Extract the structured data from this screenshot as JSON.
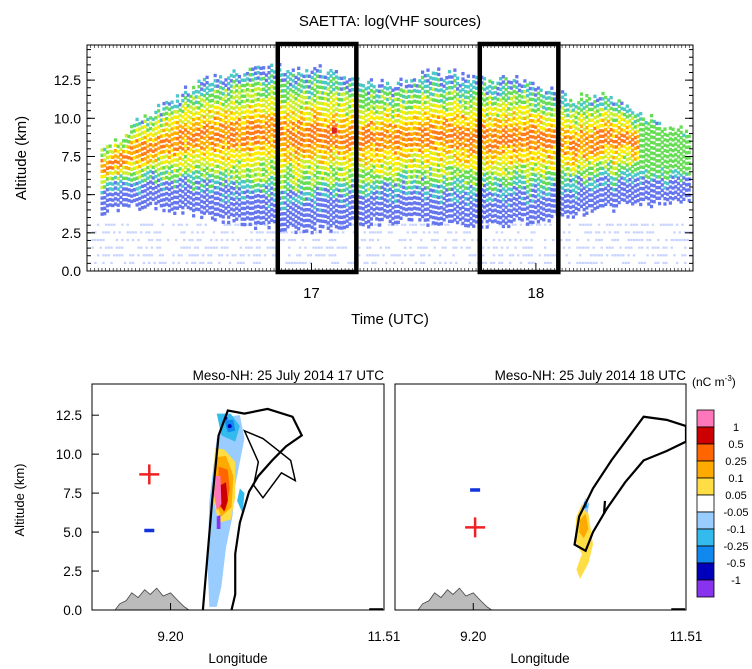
{
  "chart_data": [
    {
      "type": "heatmap",
      "title": "SAETTA: log(VHF sources)",
      "xlabel": "Time (UTC)",
      "ylabel": "Altitude (km)",
      "x_ticks": [
        "17",
        "18"
      ],
      "y_ticks": [
        "0.0",
        "2.5",
        "5.0",
        "7.5",
        "10.0",
        "12.5"
      ],
      "ylim": [
        0,
        14.8
      ],
      "xlim": [
        16.0,
        18.7
      ],
      "highlight_windows": [
        [
          16.85,
          17.2
        ],
        [
          17.75,
          18.1
        ]
      ],
      "colormap": [
        "#c8d4ff",
        "#6677ee",
        "#4cc8c8",
        "#66dd55",
        "#ccee33",
        "#ffee00",
        "#ffb000",
        "#ff7a1a",
        "#dd2222"
      ],
      "envelope": [
        {
          "t": 16.08,
          "top": 7.8,
          "bot": 3.8
        },
        {
          "t": 16.2,
          "top": 9.5,
          "bot": 4.2
        },
        {
          "t": 16.35,
          "top": 10.8,
          "bot": 4.0
        },
        {
          "t": 16.5,
          "top": 12.0,
          "bot": 3.5
        },
        {
          "t": 16.65,
          "top": 12.8,
          "bot": 3.2
        },
        {
          "t": 16.8,
          "top": 13.2,
          "bot": 2.8
        },
        {
          "t": 16.95,
          "top": 13.0,
          "bot": 2.6
        },
        {
          "t": 17.1,
          "top": 12.8,
          "bot": 2.8
        },
        {
          "t": 17.25,
          "top": 12.2,
          "bot": 3.0
        },
        {
          "t": 17.4,
          "top": 12.0,
          "bot": 3.2
        },
        {
          "t": 17.55,
          "top": 12.8,
          "bot": 3.0
        },
        {
          "t": 17.7,
          "top": 12.5,
          "bot": 2.8
        },
        {
          "t": 17.85,
          "top": 12.3,
          "bot": 3.0
        },
        {
          "t": 18.0,
          "top": 12.0,
          "bot": 3.2
        },
        {
          "t": 18.15,
          "top": 11.0,
          "bot": 3.5
        },
        {
          "t": 18.3,
          "top": 11.5,
          "bot": 4.0
        },
        {
          "t": 18.45,
          "top": 10.0,
          "bot": 4.2
        },
        {
          "t": 18.6,
          "top": 9.0,
          "bot": 4.5
        }
      ],
      "max_point": {
        "t": 17.1,
        "alt": 9.2
      }
    },
    {
      "type": "heatmap",
      "title": "Meso-NH: 25 July 2014 17 UTC",
      "xlabel": "Longitude",
      "ylabel": "Altitude (km)",
      "x_ticks": [
        "9.20",
        "11.51"
      ],
      "y_ticks": [
        "0.0",
        "2.5",
        "5.0",
        "7.5",
        "10.0",
        "12.5"
      ],
      "xlim": [
        8.35,
        11.51
      ],
      "ylim": [
        0,
        14.5
      ],
      "sign_markers": [
        {
          "symbol": "+",
          "lon": 8.97,
          "alt": 8.7,
          "color": "#ee2222"
        },
        {
          "symbol": "-",
          "lon": 8.97,
          "alt": 5.1,
          "color": "#1133dd"
        }
      ],
      "cloud_outline": [
        {
          "lon": 9.55,
          "alt": 0.0
        },
        {
          "lon": 9.6,
          "alt": 3.5
        },
        {
          "lon": 9.65,
          "alt": 7.0
        },
        {
          "lon": 9.72,
          "alt": 11.2
        },
        {
          "lon": 9.82,
          "alt": 12.8
        },
        {
          "lon": 10.0,
          "alt": 12.6
        },
        {
          "lon": 10.25,
          "alt": 12.9
        },
        {
          "lon": 10.52,
          "alt": 12.4
        },
        {
          "lon": 10.62,
          "alt": 11.2
        },
        {
          "lon": 10.45,
          "alt": 10.5
        },
        {
          "lon": 10.3,
          "alt": 9.6
        },
        {
          "lon": 10.15,
          "alt": 8.6
        },
        {
          "lon": 10.05,
          "alt": 7.6
        },
        {
          "lon": 10.0,
          "alt": 6.6
        },
        {
          "lon": 9.95,
          "alt": 5.6
        },
        {
          "lon": 9.9,
          "alt": 3.6
        },
        {
          "lon": 9.9,
          "alt": 1.0
        },
        {
          "lon": 9.86,
          "alt": 0.0
        }
      ]
    },
    {
      "type": "heatmap",
      "title": "Meso-NH: 25 July 2014 18 UTC",
      "xlabel": "Longitude",
      "x_ticks": [
        "9.20",
        "11.51"
      ],
      "xlim": [
        8.35,
        11.51
      ],
      "ylim": [
        0,
        14.5
      ],
      "sign_markers": [
        {
          "symbol": "-",
          "lon": 9.22,
          "alt": 7.7,
          "color": "#1133dd"
        },
        {
          "symbol": "+",
          "lon": 9.22,
          "alt": 5.3,
          "color": "#ee2222"
        }
      ],
      "cloud_outline": [
        {
          "lon": 10.3,
          "alt": 4.2
        },
        {
          "lon": 10.35,
          "alt": 6.0
        },
        {
          "lon": 10.5,
          "alt": 7.8
        },
        {
          "lon": 10.7,
          "alt": 9.6
        },
        {
          "lon": 10.9,
          "alt": 11.2
        },
        {
          "lon": 11.05,
          "alt": 12.4
        },
        {
          "lon": 11.3,
          "alt": 12.2
        },
        {
          "lon": 11.51,
          "alt": 11.8
        },
        {
          "lon": 11.51,
          "alt": 10.8
        },
        {
          "lon": 11.3,
          "alt": 10.2
        },
        {
          "lon": 11.05,
          "alt": 9.6
        },
        {
          "lon": 10.85,
          "alt": 8.2
        },
        {
          "lon": 10.65,
          "alt": 6.5
        },
        {
          "lon": 10.5,
          "alt": 5.0
        },
        {
          "lon": 10.42,
          "alt": 3.8
        }
      ]
    }
  ],
  "colorbar": {
    "unit_label": "(nC m",
    "unit_exp": "-3",
    "unit_close": ")",
    "labels": [
      "1",
      "0.5",
      "0.25",
      "0.1",
      "0.05",
      "-0.05",
      "-0.1",
      "-0.25",
      "-0.5",
      "-1"
    ],
    "colors": [
      "#ff77bb",
      "#cc0000",
      "#ff6600",
      "#ffaa00",
      "#ffdd44",
      "#ffffff",
      "#99ccff",
      "#33bbee",
      "#1188ee",
      "#0000bb",
      "#8833ee"
    ]
  }
}
